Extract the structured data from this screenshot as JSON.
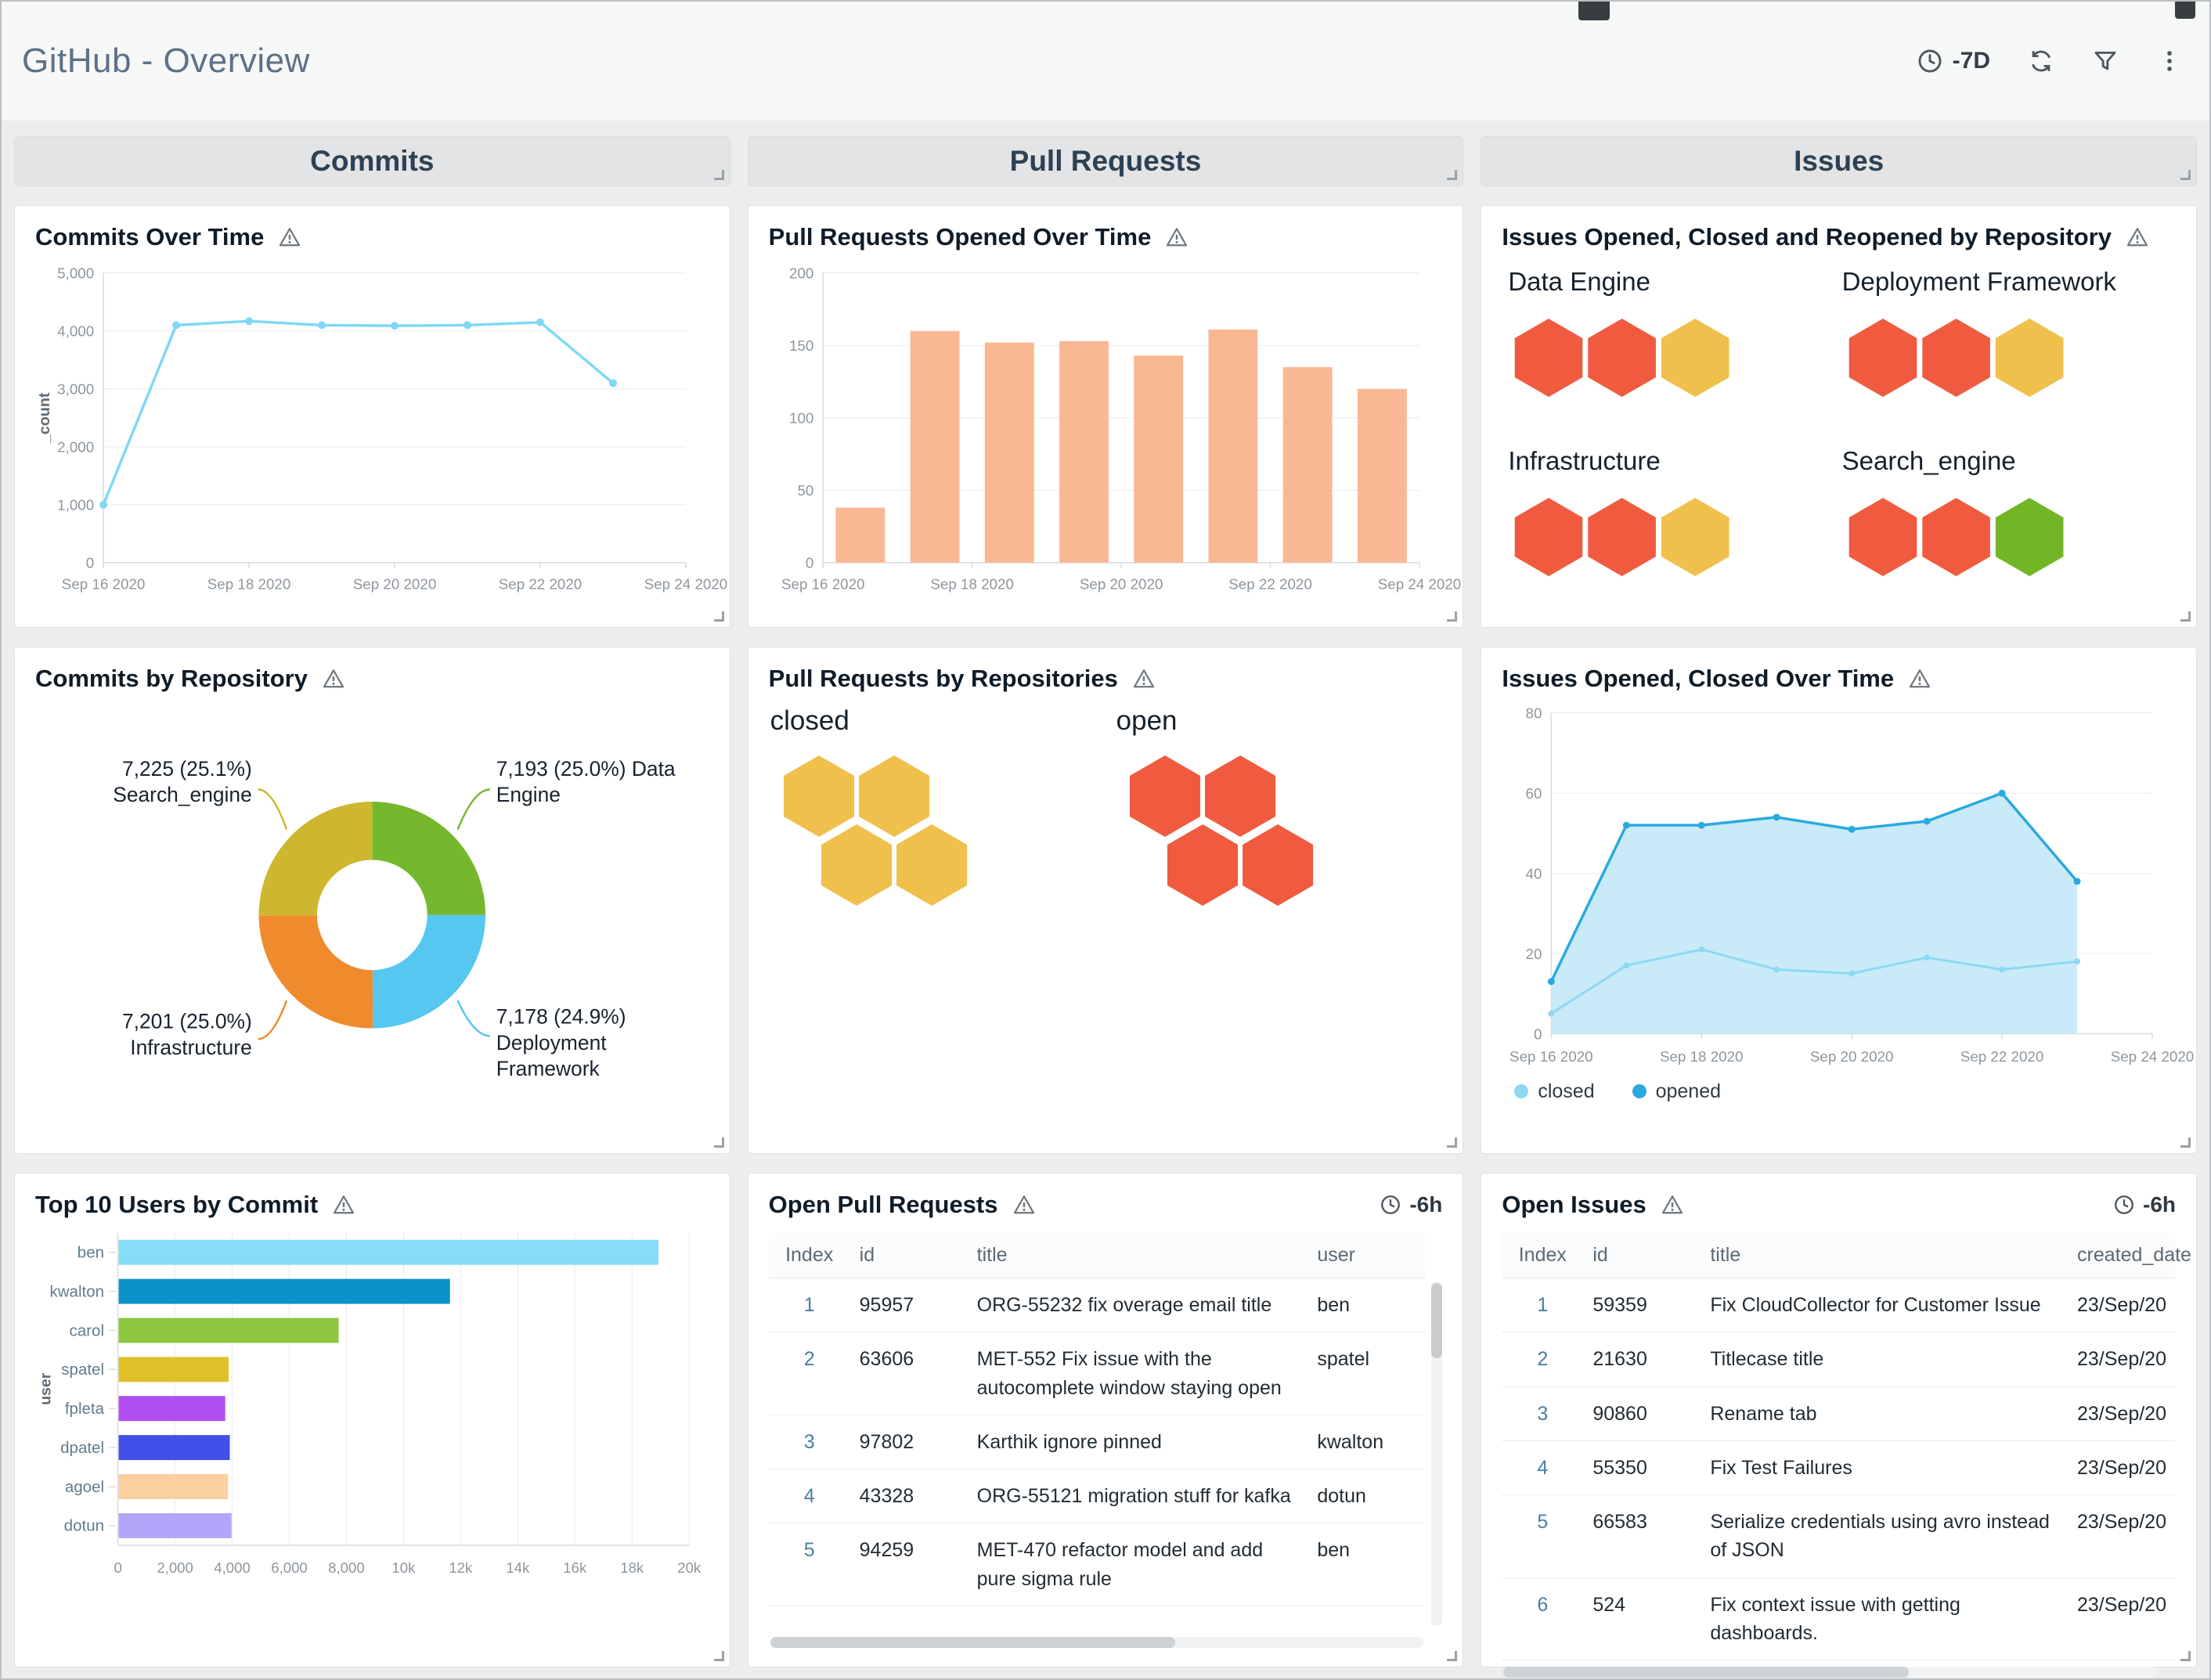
{
  "header": {
    "title": "GitHub - Overview",
    "time_range": "-7D"
  },
  "sections": [
    {
      "label": "Commits"
    },
    {
      "label": "Pull Requests"
    },
    {
      "label": "Issues"
    }
  ],
  "panels": {
    "commits_over_time": {
      "title": "Commits Over Time"
    },
    "pr_opened_over_time": {
      "title": "Pull Requests Opened Over Time"
    },
    "issues_by_repository": {
      "title": "Issues Opened, Closed and Reopened by Repository"
    },
    "commits_by_repository": {
      "title": "Commits by Repository"
    },
    "pr_by_repositories": {
      "title": "Pull Requests by Repositories"
    },
    "issues_over_time": {
      "title": "Issues Opened, Closed Over Time",
      "legend": [
        {
          "label": "closed",
          "color": "#8ed8f3"
        },
        {
          "label": "opened",
          "color": "#29a9de"
        }
      ]
    },
    "top_users": {
      "title": "Top 10 Users by Commit"
    },
    "open_prs": {
      "title": "Open Pull Requests",
      "time_range": "-6h",
      "table": {
        "columns": [
          "Index",
          "id",
          "title",
          "user"
        ],
        "rows": [
          [
            "1",
            "95957",
            "ORG-55232 fix overage email title",
            "ben"
          ],
          [
            "2",
            "63606",
            "MET-552 Fix issue with the autocomplete window staying open",
            "spatel"
          ],
          [
            "3",
            "97802",
            "Karthik ignore pinned",
            "kwalton"
          ],
          [
            "4",
            "43328",
            "ORG-55121 migration stuff for kafka",
            "dotun"
          ],
          [
            "5",
            "94259",
            "MET-470 refactor model and add pure sigma rule",
            "ben"
          ]
        ]
      }
    },
    "open_issues": {
      "title": "Open Issues",
      "time_range": "-6h",
      "table": {
        "columns": [
          "Index",
          "id",
          "title",
          "created_date"
        ],
        "rows": [
          [
            "1",
            "59359",
            "Fix CloudCollector for Customer Issue",
            "23/Sep/20"
          ],
          [
            "2",
            "21630",
            "Titlecase title",
            "23/Sep/20"
          ],
          [
            "3",
            "90860",
            "Rename tab",
            "23/Sep/20"
          ],
          [
            "4",
            "55350",
            "Fix Test Failures",
            "23/Sep/20"
          ],
          [
            "5",
            "66583",
            "Serialize credentials using avro instead of JSON",
            "23/Sep/20"
          ],
          [
            "6",
            "524",
            "Fix context issue with getting dashboards.",
            "23/Sep/20"
          ]
        ]
      }
    }
  },
  "chart_data": [
    {
      "id": "commits_over_time",
      "type": "line",
      "title": "Commits Over Time",
      "ylabel": "_count",
      "color": "#7fd8f7",
      "x": [
        "Sep 16 2020",
        "Sep 17 2020",
        "Sep 18 2020",
        "Sep 19 2020",
        "Sep 20 2020",
        "Sep 21 2020",
        "Sep 22 2020",
        "Sep 23 2020"
      ],
      "values": [
        1000,
        4100,
        4170,
        4100,
        4090,
        4100,
        4150,
        3100
      ],
      "ylim": [
        0,
        5000
      ],
      "yticks": [
        0,
        1000,
        2000,
        3000,
        4000,
        5000
      ],
      "ytick_labels": [
        "0",
        "1,000",
        "2,000",
        "3,000",
        "4,000",
        "5,000"
      ],
      "xtick_labels": [
        "Sep 16 2020",
        "Sep 18 2020",
        "Sep 20 2020",
        "Sep 22 2020",
        "Sep 24 2020"
      ],
      "grid": "horizontal"
    },
    {
      "id": "pr_opened_over_time",
      "type": "bar",
      "title": "Pull Requests Opened Over Time",
      "color": "#f9b893",
      "x": [
        "Sep 16 2020",
        "Sep 17 2020",
        "Sep 18 2020",
        "Sep 19 2020",
        "Sep 20 2020",
        "Sep 21 2020",
        "Sep 22 2020",
        "Sep 23 2020"
      ],
      "values": [
        38,
        160,
        152,
        153,
        143,
        161,
        135,
        120
      ],
      "ylim": [
        0,
        200
      ],
      "yticks": [
        0,
        50,
        100,
        150,
        200
      ],
      "ytick_labels": [
        "0",
        "50",
        "100",
        "150",
        "200"
      ],
      "xtick_labels": [
        "Sep 16 2020",
        "Sep 18 2020",
        "Sep 20 2020",
        "Sep 22 2020",
        "Sep 24 2020"
      ],
      "grid": "horizontal"
    },
    {
      "id": "issues_by_repository",
      "type": "hex-status",
      "title": "Issues Opened, Closed and Reopened by Repository",
      "palette": {
        "red": "#f05b40",
        "yellow": "#efc04b",
        "green": "#72b626"
      },
      "groups": [
        {
          "name": "Data Engine",
          "hexes": [
            "red",
            "red",
            "yellow"
          ]
        },
        {
          "name": "Deployment Framework",
          "hexes": [
            "red",
            "red",
            "yellow"
          ]
        },
        {
          "name": "Infrastructure",
          "hexes": [
            "red",
            "red",
            "yellow"
          ]
        },
        {
          "name": "Search_engine",
          "hexes": [
            "red",
            "red",
            "green"
          ]
        }
      ]
    },
    {
      "id": "commits_by_repository",
      "type": "donut",
      "title": "Commits by Repository",
      "segments": [
        {
          "label": "Data Engine",
          "value": 7193,
          "pct": 25.0,
          "color": "#76b82d",
          "label_lines": [
            "7,193 (25.0%) Data",
            "Engine"
          ]
        },
        {
          "label": "Deployment Framework",
          "value": 7178,
          "pct": 24.9,
          "color": "#55c7f0",
          "label_lines": [
            "7,178 (24.9%)",
            "Deployment",
            "Framework"
          ]
        },
        {
          "label": "Infrastructure",
          "value": 7201,
          "pct": 25.0,
          "color": "#f08b2d",
          "label_lines": [
            "7,201 (25.0%)",
            "Infrastructure"
          ]
        },
        {
          "label": "Search_engine",
          "value": 7225,
          "pct": 25.1,
          "color": "#cdb72f",
          "label_lines": [
            "7,225 (25.1%)",
            "Search_engine"
          ]
        }
      ]
    },
    {
      "id": "pr_by_repositories",
      "type": "hex-cluster",
      "title": "Pull Requests by Repositories",
      "clusters": [
        {
          "label": "closed",
          "color": "#efc04b",
          "count": 4
        },
        {
          "label": "open",
          "color": "#f05b40",
          "count": 4
        }
      ]
    },
    {
      "id": "issues_over_time",
      "type": "area",
      "title": "Issues Opened, Closed Over Time",
      "x": [
        "Sep 16 2020",
        "Sep 17 2020",
        "Sep 18 2020",
        "Sep 19 2020",
        "Sep 20 2020",
        "Sep 21 2020",
        "Sep 22 2020",
        "Sep 23 2020"
      ],
      "series": [
        {
          "name": "opened",
          "color": "#29a9de",
          "fill": "#c9eaf8",
          "values": [
            13,
            52,
            52,
            54,
            51,
            53,
            60,
            38
          ]
        },
        {
          "name": "closed",
          "color": "#8ed8f3",
          "values": [
            5,
            17,
            21,
            16,
            15,
            19,
            16,
            18
          ]
        }
      ],
      "ylim": [
        0,
        80
      ],
      "yticks": [
        0,
        20,
        40,
        60,
        80
      ],
      "ytick_labels": [
        "0",
        "20",
        "40",
        "60",
        "80"
      ],
      "xtick_labels": [
        "Sep 16 2020",
        "Sep 18 2020",
        "Sep 20 2020",
        "Sep 22 2020",
        "Sep 24 2020"
      ],
      "legend_position": "bottom-left",
      "grid": "horizontal"
    },
    {
      "id": "top_users_by_commit",
      "type": "hbar",
      "title": "Top 10 Users by Commit",
      "ylabel": "user",
      "categories": [
        "ben",
        "kwalton",
        "carol",
        "spatel",
        "fpleta",
        "dpatel",
        "agoel",
        "dotun"
      ],
      "values": [
        18900,
        11600,
        7700,
        3850,
        3730,
        3890,
        3830,
        3950
      ],
      "colors": [
        "#86ddf7",
        "#0a93c9",
        "#8dc63f",
        "#e0c028",
        "#b14ef2",
        "#4150e8",
        "#fbcf9e",
        "#b2a4f7"
      ],
      "xlim": [
        0,
        20000
      ],
      "xticks": [
        0,
        2000,
        4000,
        6000,
        8000,
        10000,
        12000,
        14000,
        16000,
        18000,
        20000
      ],
      "xtick_labels": [
        "0",
        "2,000",
        "4,000",
        "6,000",
        "8,000",
        "10k",
        "12k",
        "14k",
        "16k",
        "18k",
        "20k"
      ],
      "grid": "vertical"
    }
  ]
}
